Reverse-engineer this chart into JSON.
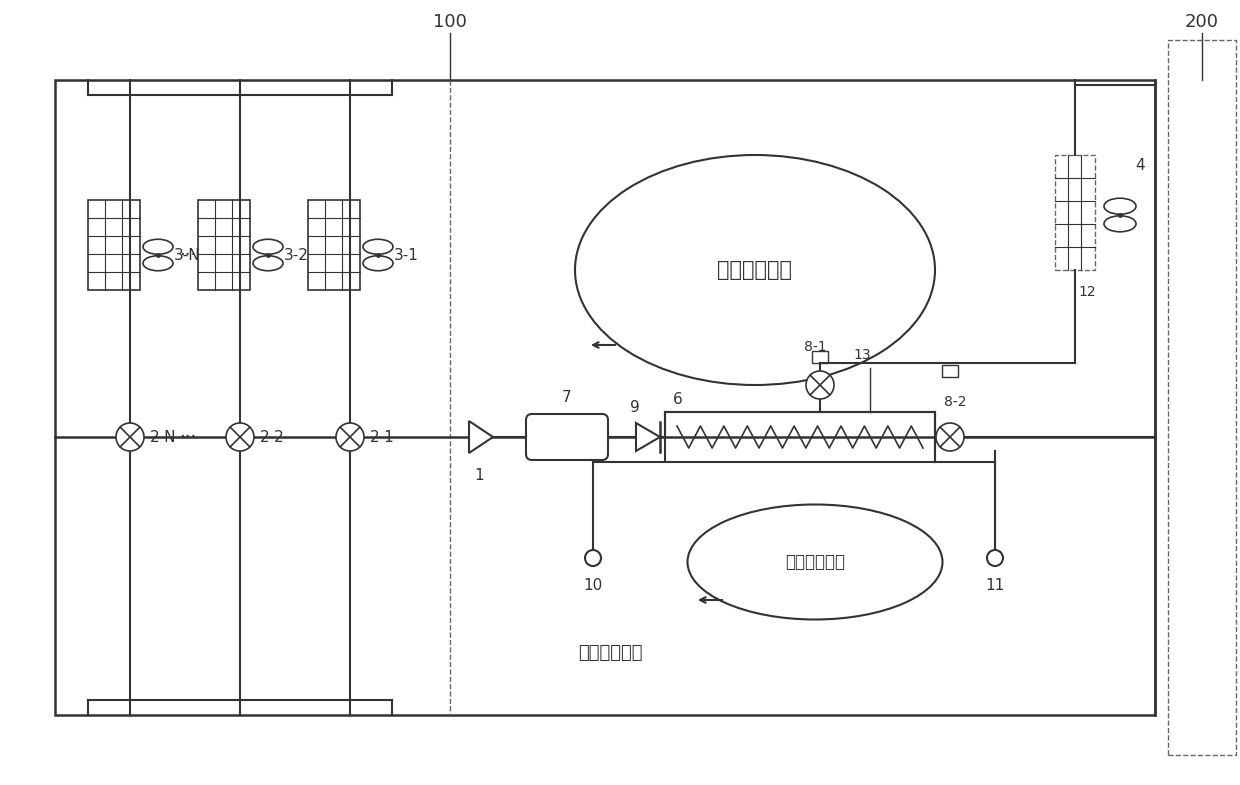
{
  "bg_color": "#ffffff",
  "line_color": "#333333",
  "text_color": "#333333",
  "dashed_color": "#666666",
  "title_100": "100",
  "title_200": "200",
  "label_hot_pipe": "热管循环系统",
  "label_aux_cold": "辅助冷源系统",
  "label_ext_aux": "外接辅助冷源",
  "label_1": "1",
  "label_2N": "2-N",
  "label_22": "2-2",
  "label_21": "2-1",
  "label_3N": "3-N",
  "label_32": "3-2",
  "label_31": "3-1",
  "label_4": "4",
  "label_6": "6",
  "label_7": "7",
  "label_8_1": "8-1",
  "label_8_2": "8-2",
  "label_9": "9",
  "label_10": "10",
  "label_11": "11",
  "label_12": "12",
  "label_13": "13"
}
